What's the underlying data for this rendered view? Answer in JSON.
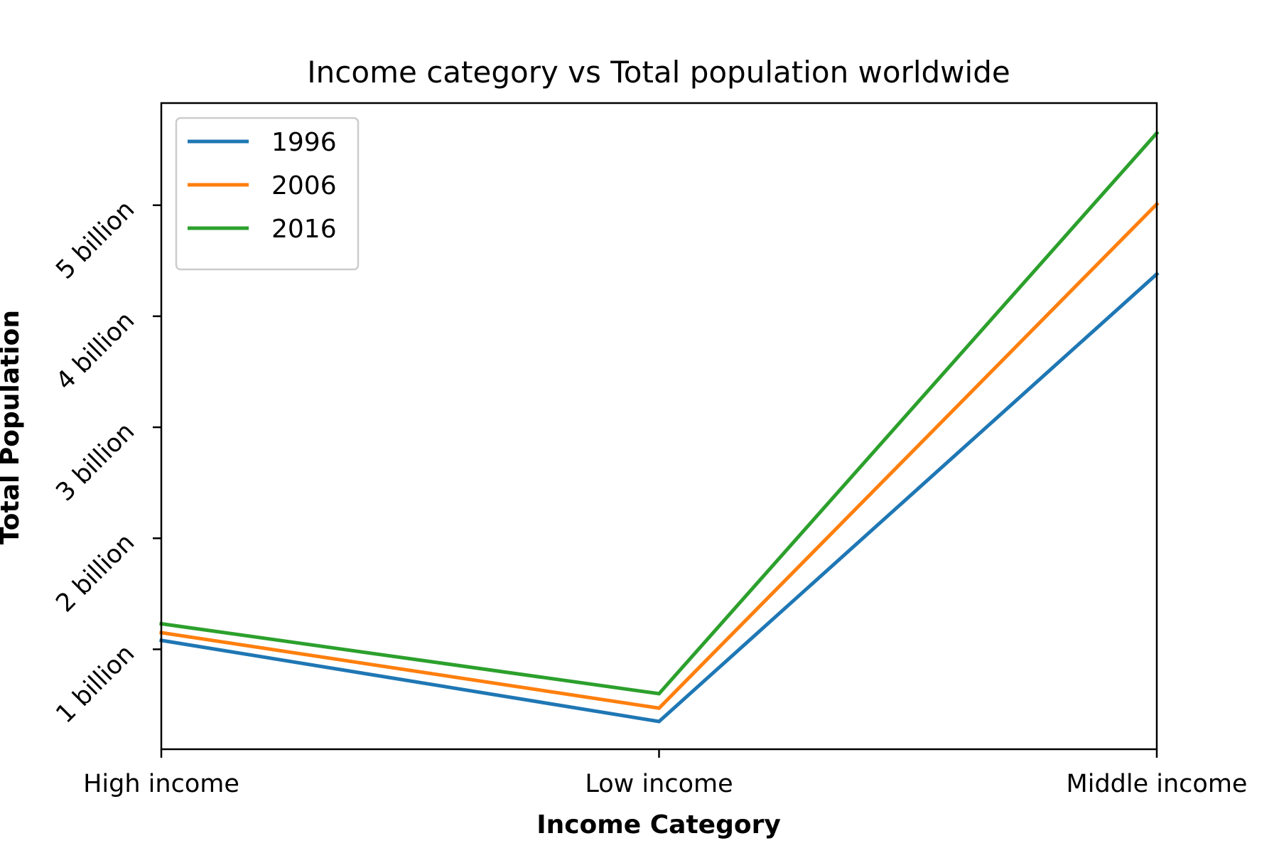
{
  "chart_data": {
    "type": "line",
    "title": "Income category vs Total population worldwide",
    "xlabel": "Income Category",
    "ylabel": "Total Population",
    "categories": [
      "High income",
      "Low income",
      "Middle income"
    ],
    "series": [
      {
        "name": "1996",
        "color": "#1f77b4",
        "values": [
          1.08,
          0.35,
          4.38
        ]
      },
      {
        "name": "2006",
        "color": "#ff7f0e",
        "values": [
          1.15,
          0.47,
          5.01
        ]
      },
      {
        "name": "2016",
        "color": "#2ca02c",
        "values": [
          1.23,
          0.6,
          5.65
        ]
      }
    ],
    "ylim": [
      0.1,
      5.92
    ],
    "yticks": [
      {
        "value": 1,
        "label": "1 billion"
      },
      {
        "value": 2,
        "label": "2 billion"
      },
      {
        "value": 3,
        "label": "3 billion"
      },
      {
        "value": 4,
        "label": "4 billion"
      },
      {
        "value": 5,
        "label": "5 billion"
      }
    ],
    "ytick_rotation_deg": 45,
    "legend": "top-left",
    "grid": false
  }
}
